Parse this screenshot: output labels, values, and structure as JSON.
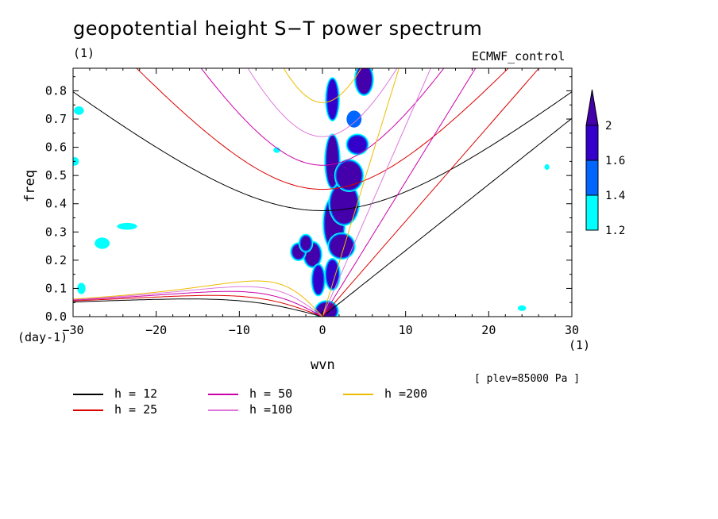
{
  "title": "geopotential height S−T power spectrum",
  "units_left": "(1)",
  "model_label": "ECMWF_control",
  "footnote": "[ plev=85000 Pa ]",
  "chart_data": {
    "type": "heatmap",
    "xlabel": "wvn",
    "ylabel": "freq",
    "x_unit": "(1)",
    "y_unit": "(day-1)",
    "xlim": [
      -30,
      30
    ],
    "ylim": [
      0,
      0.88
    ],
    "x_ticks": [
      -30,
      -20,
      -10,
      0,
      10,
      20,
      30
    ],
    "x_tick_labels": [
      "−30",
      "−20",
      "−10",
      "0",
      "10",
      "20",
      "30"
    ],
    "y_ticks": [
      0.0,
      0.1,
      0.2,
      0.3,
      0.4,
      0.5,
      0.6,
      0.7,
      0.8
    ],
    "y_tick_labels": [
      "0.0",
      "0.1",
      "0.2",
      "0.3",
      "0.4",
      "0.5",
      "0.6",
      "0.7",
      "0.8"
    ],
    "colorbar": {
      "levels": [
        1.2,
        1.4,
        1.6,
        2
      ],
      "labels": [
        "1.2",
        "1.4",
        "1.6",
        "2"
      ],
      "colors": [
        "#00ffff",
        "#0066ff",
        "#3300cc",
        "#4400aa"
      ]
    },
    "dispersion_curves": [
      {
        "name": "h = 12",
        "h": 12,
        "color": "#000000"
      },
      {
        "name": "h = 25",
        "h": 25,
        "color": "#dd0000"
      },
      {
        "name": "h = 50",
        "h": 50,
        "color": "#cc00aa"
      },
      {
        "name": "h =100",
        "h": 100,
        "color": "#dd77dd"
      },
      {
        "name": "h =200",
        "h": 200,
        "color": "#eebb00"
      }
    ],
    "power_blobs": [
      {
        "x": 0.5,
        "y": 0.02,
        "rx": 1.2,
        "ry": 0.03,
        "level": 2
      },
      {
        "x": 1.2,
        "y": 0.15,
        "rx": 0.7,
        "ry": 0.05,
        "level": 1.6
      },
      {
        "x": 1.4,
        "y": 0.33,
        "rx": 1.1,
        "ry": 0.09,
        "level": 2
      },
      {
        "x": 1.2,
        "y": 0.55,
        "rx": 0.7,
        "ry": 0.09,
        "level": 2
      },
      {
        "x": 1.2,
        "y": 0.77,
        "rx": 0.6,
        "ry": 0.07,
        "level": 1.6
      },
      {
        "x": 2.6,
        "y": 0.4,
        "rx": 1.6,
        "ry": 0.07,
        "level": 2
      },
      {
        "x": 3.2,
        "y": 0.5,
        "rx": 1.5,
        "ry": 0.05,
        "level": 2
      },
      {
        "x": 4.2,
        "y": 0.61,
        "rx": 1.1,
        "ry": 0.03,
        "level": 1.6
      },
      {
        "x": 5.0,
        "y": 0.84,
        "rx": 0.9,
        "ry": 0.05,
        "level": 2
      },
      {
        "x": 3.8,
        "y": 0.7,
        "rx": 0.9,
        "ry": 0.03,
        "level": 1.4
      },
      {
        "x": 2.3,
        "y": 0.25,
        "rx": 1.4,
        "ry": 0.04,
        "level": 2
      },
      {
        "x": -1.2,
        "y": 0.22,
        "rx": 0.9,
        "ry": 0.04,
        "level": 2
      },
      {
        "x": -2.9,
        "y": 0.23,
        "rx": 0.7,
        "ry": 0.025,
        "level": 2
      },
      {
        "x": -2.0,
        "y": 0.26,
        "rx": 0.6,
        "ry": 0.025,
        "level": 2
      },
      {
        "x": -0.5,
        "y": 0.13,
        "rx": 0.6,
        "ry": 0.05,
        "level": 1.6
      },
      {
        "x": -29.3,
        "y": 0.73,
        "rx": 0.6,
        "ry": 0.015,
        "level": 1.2
      },
      {
        "x": -29.8,
        "y": 0.55,
        "rx": 0.5,
        "ry": 0.015,
        "level": 1.2
      },
      {
        "x": -23.5,
        "y": 0.32,
        "rx": 1.2,
        "ry": 0.012,
        "level": 1.2
      },
      {
        "x": -26.5,
        "y": 0.26,
        "rx": 0.9,
        "ry": 0.02,
        "level": 1.2
      },
      {
        "x": -29.0,
        "y": 0.1,
        "rx": 0.5,
        "ry": 0.02,
        "level": 1.2
      },
      {
        "x": 27.0,
        "y": 0.53,
        "rx": 0.3,
        "ry": 0.01,
        "level": 1.2
      },
      {
        "x": 24.0,
        "y": 0.03,
        "rx": 0.5,
        "ry": 0.01,
        "level": 1.2
      },
      {
        "x": -5.5,
        "y": 0.59,
        "rx": 0.4,
        "ry": 0.01,
        "level": 1.2
      }
    ]
  }
}
